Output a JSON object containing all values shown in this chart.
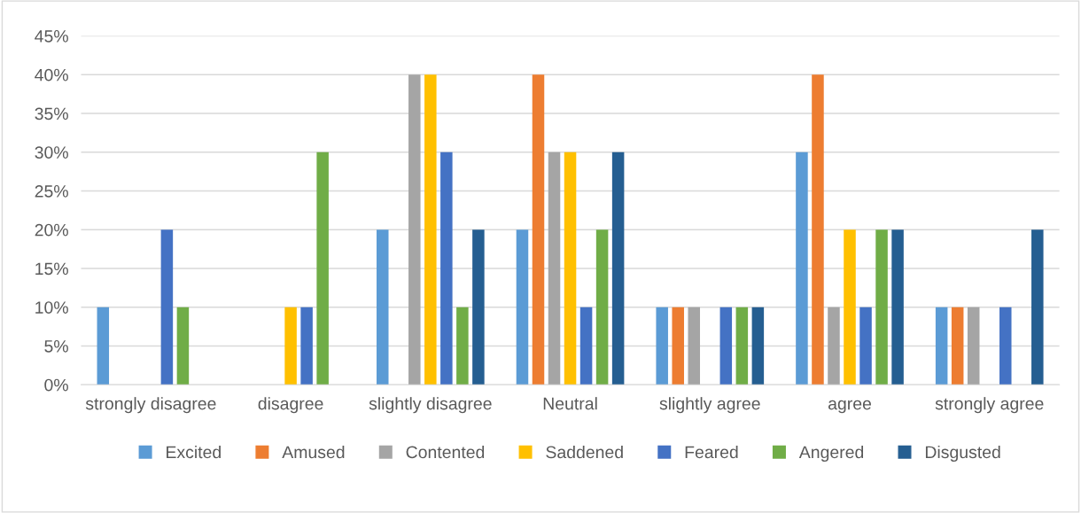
{
  "chart_data": {
    "type": "bar",
    "categories": [
      "strongly disagree",
      "disagree",
      "slightly disagree",
      "Neutral",
      "slightly agree",
      "agree",
      "strongly agree"
    ],
    "series": [
      {
        "name": "Excited",
        "color": "#5b9bd5",
        "values": [
          10,
          0,
          20,
          20,
          10,
          30,
          10
        ]
      },
      {
        "name": "Amused",
        "color": "#ed7d31",
        "values": [
          0,
          0,
          0,
          40,
          10,
          40,
          10
        ]
      },
      {
        "name": "Contented",
        "color": "#a5a5a5",
        "values": [
          0,
          0,
          40,
          30,
          10,
          10,
          10
        ]
      },
      {
        "name": "Saddened",
        "color": "#ffc000",
        "values": [
          0,
          10,
          40,
          30,
          0,
          20,
          0
        ]
      },
      {
        "name": "Feared",
        "color": "#4472c4",
        "values": [
          20,
          10,
          30,
          10,
          10,
          10,
          10
        ]
      },
      {
        "name": "Angered",
        "color": "#70ad47",
        "values": [
          10,
          30,
          10,
          20,
          10,
          20,
          0
        ]
      },
      {
        "name": "Disgusted",
        "color": "#255e91",
        "values": [
          0,
          0,
          20,
          30,
          10,
          20,
          20
        ]
      }
    ],
    "ylim": [
      0,
      45
    ],
    "yticks": [
      {
        "value": 0,
        "label": "0%"
      },
      {
        "value": 5,
        "label": "5%"
      },
      {
        "value": 10,
        "label": "10%"
      },
      {
        "value": 15,
        "label": "15%"
      },
      {
        "value": 20,
        "label": "20%"
      },
      {
        "value": 25,
        "label": "25%"
      },
      {
        "value": 30,
        "label": "30%"
      },
      {
        "value": 35,
        "label": "35%"
      },
      {
        "value": 40,
        "label": "40%"
      },
      {
        "value": 45,
        "label": "45%"
      }
    ],
    "grid": "y",
    "legend": "bottom"
  }
}
